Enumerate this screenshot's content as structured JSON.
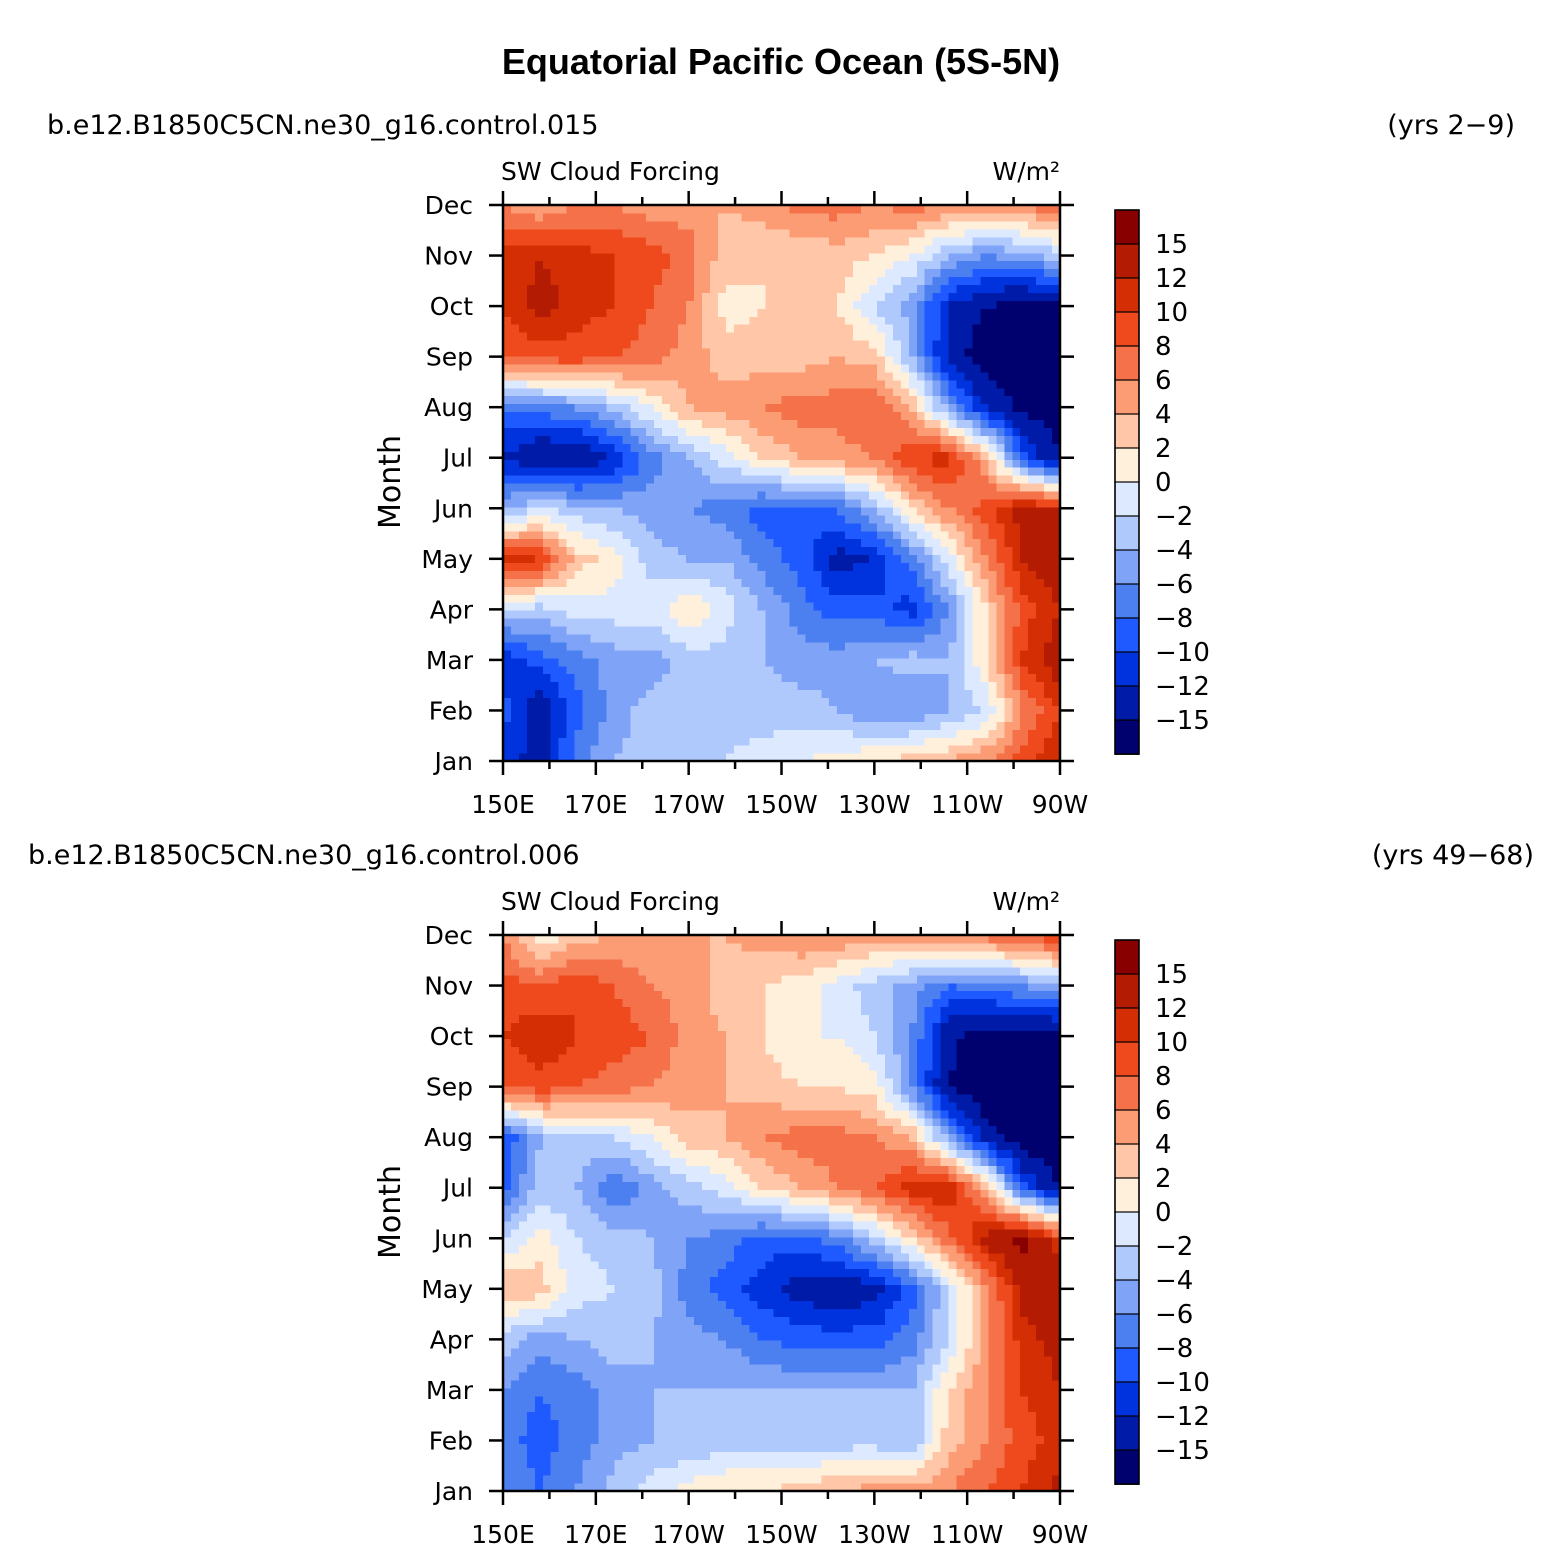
{
  "figure": {
    "title": "Equatorial Pacific Ocean (5S-5N)"
  },
  "colorbar": {
    "colors": [
      "#00006e",
      "#001ba8",
      "#0033dd",
      "#1e5aff",
      "#4c7ff0",
      "#7fa3f6",
      "#b0c9fc",
      "#dde9ff",
      "#fff0dc",
      "#ffc6a7",
      "#fc9c74",
      "#f5714a",
      "#ee4a1d",
      "#d42e04",
      "#b31b02",
      "#880000"
    ],
    "labels": [
      "15",
      "12",
      "10",
      "8",
      "6",
      "4",
      "2",
      "0",
      "−2",
      "−4",
      "−6",
      "−8",
      "−10",
      "−12",
      "−15"
    ]
  },
  "chart_data": [
    {
      "type": "heatmap",
      "case": "b.e12.B1850C5CN.ne30_g16.control.015",
      "years": "(yrs 2−9)",
      "title": "SW Cloud Forcing",
      "units": "W/m²",
      "xlabel": "",
      "ylabel": "Month",
      "x_ticks": [
        "150E",
        "170E",
        "170W",
        "150W",
        "130W",
        "110W",
        "90W"
      ],
      "x_lon_range": [
        150,
        270
      ],
      "y_ticks": [
        "Jan",
        "Feb",
        "Mar",
        "Apr",
        "May",
        "Jun",
        "Jul",
        "Aug",
        "Sep",
        "Oct",
        "Nov",
        "Dec"
      ],
      "levels": [
        -15,
        -12,
        -10,
        -8,
        -6,
        -4,
        -2,
        0,
        2,
        4,
        6,
        8,
        10,
        12,
        15
      ],
      "z": [
        [
          -11,
          -13,
          -7,
          -4,
          -3,
          -3,
          -2,
          -1,
          0,
          1,
          2,
          3,
          4,
          6,
          9,
          12
        ],
        [
          -9,
          -14,
          -9,
          -5,
          -3,
          -4,
          -3,
          -3,
          -3,
          -4,
          -6,
          -6,
          -4,
          -2,
          6,
          10
        ],
        [
          -12,
          -9,
          -7,
          -5,
          -5,
          -3,
          -3,
          -4,
          -5,
          -5,
          -4,
          -3,
          -4,
          2,
          10,
          14
        ],
        [
          -2,
          -3,
          -1,
          -1,
          -1,
          2,
          -1,
          -4,
          -7,
          -9,
          -9,
          -11,
          -6,
          2,
          9,
          12
        ],
        [
          11,
          10,
          3,
          1,
          -3,
          -4,
          -4,
          -7,
          -9,
          -13,
          -12,
          -7,
          -1,
          6,
          12,
          14
        ],
        [
          -4,
          -2,
          -3,
          -4,
          -5,
          -6,
          -7,
          -9,
          -9,
          -8,
          -4,
          2,
          6,
          9,
          13,
          12
        ],
        [
          -12,
          -15,
          -15,
          -12,
          -7,
          -4,
          -1,
          2,
          4,
          5,
          6,
          10,
          11,
          4,
          -9,
          -15
        ],
        [
          -8,
          -7,
          -6,
          -3,
          0,
          4,
          5,
          6,
          7,
          7,
          8,
          4,
          -5,
          -12,
          -16,
          -17
        ],
        [
          8,
          9,
          9,
          8,
          7,
          5,
          3,
          3,
          3,
          4,
          3,
          -4,
          -13,
          -17,
          -18,
          -18
        ],
        [
          10,
          13,
          11,
          10,
          8,
          6,
          1,
          2,
          3,
          2,
          -2,
          -5,
          -12,
          -15,
          -16,
          -16
        ],
        [
          11,
          12,
          11,
          10,
          9,
          7,
          3,
          2,
          2,
          3,
          2,
          0,
          -4,
          -6,
          -5,
          -3
        ],
        [
          6,
          4,
          6,
          6,
          5,
          5,
          4,
          5,
          7,
          7,
          6,
          7,
          6,
          5,
          6,
          8
        ]
      ]
    },
    {
      "type": "heatmap",
      "case": "b.e12.B1850C5CN.ne30_g16.control.006",
      "years": "(yrs 49−68)",
      "title": "SW Cloud Forcing",
      "units": "W/m²",
      "xlabel": "",
      "ylabel": "Month",
      "x_ticks": [
        "150E",
        "170E",
        "170W",
        "150W",
        "130W",
        "110W",
        "90W"
      ],
      "x_lon_range": [
        150,
        270
      ],
      "y_ticks": [
        "Jan",
        "Feb",
        "Mar",
        "Apr",
        "May",
        "Jun",
        "Jul",
        "Aug",
        "Sep",
        "Oct",
        "Nov",
        "Dec"
      ],
      "levels": [
        -15,
        -12,
        -10,
        -8,
        -6,
        -4,
        -2,
        0,
        2,
        4,
        6,
        8,
        10,
        12,
        15
      ],
      "z": [
        [
          -6,
          -8,
          -6,
          -3,
          -1,
          1,
          2,
          2,
          3,
          4,
          5,
          5,
          6,
          8,
          10,
          13
        ],
        [
          -7,
          -9,
          -7,
          -5,
          -4,
          -4,
          -3,
          -3,
          -3,
          -3,
          -3,
          -4,
          3,
          6,
          9,
          11
        ],
        [
          -6,
          -8,
          -7,
          -5,
          -4,
          -4,
          -4,
          -4,
          -4,
          -4,
          -4,
          -4,
          2,
          6,
          10,
          12
        ],
        [
          -3,
          -5,
          -4,
          -3,
          -4,
          -5,
          -6,
          -8,
          -9,
          -9,
          -9,
          -7,
          -2,
          5,
          11,
          13
        ],
        [
          4,
          3,
          -1,
          -2,
          -3,
          -7,
          -9,
          -11,
          -13,
          -14,
          -13,
          -9,
          -2,
          5,
          13,
          15
        ],
        [
          -2,
          1,
          -2,
          -3,
          -4,
          -6,
          -7,
          -9,
          -9,
          -7,
          -3,
          2,
          7,
          13,
          16,
          10
        ],
        [
          -9,
          -3,
          -4,
          -8,
          -5,
          -3,
          -1,
          2,
          4,
          6,
          8,
          11,
          12,
          4,
          -9,
          -15
        ],
        [
          -10,
          -4,
          -3,
          -2,
          0,
          3,
          4,
          6,
          7,
          7,
          6,
          4,
          -5,
          -13,
          -17,
          -18
        ],
        [
          8,
          9,
          8,
          7,
          6,
          5,
          4,
          3,
          2,
          2,
          1,
          -6,
          -15,
          -18,
          -18,
          -18
        ],
        [
          10,
          12,
          10,
          9,
          8,
          5,
          4,
          2,
          0,
          0,
          -2,
          -6,
          -14,
          -17,
          -16,
          -16
        ],
        [
          9,
          8,
          10,
          8,
          6,
          5,
          3,
          2,
          1,
          -1,
          -3,
          -5,
          -8,
          -7,
          -6,
          -4
        ],
        [
          6,
          0,
          3,
          4,
          5,
          4,
          4,
          5,
          6,
          6,
          5,
          5,
          6,
          7,
          8,
          10
        ]
      ]
    }
  ]
}
